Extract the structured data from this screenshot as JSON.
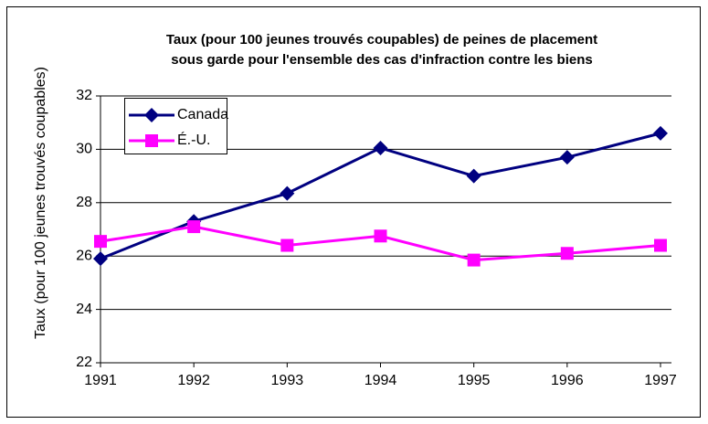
{
  "chart_data": {
    "type": "line",
    "title": [
      "Taux (pour 100 jeunes trouvés coupables) de peines de placement",
      "sous garde pour l'ensemble des cas d'infraction contre les biens"
    ],
    "y_label": "Taux (pour 100 jeunes trouvés coupables)",
    "x": [
      1991,
      1992,
      1993,
      1994,
      1995,
      1996,
      1997
    ],
    "series": [
      {
        "name": "Canada",
        "color": "#000080",
        "marker": "diamond",
        "values": [
          25.9,
          27.3,
          28.35,
          30.05,
          29.0,
          29.7,
          30.6
        ]
      },
      {
        "name": "É.-U.",
        "color": "#ff00ff",
        "marker": "square",
        "values": [
          26.55,
          27.1,
          26.4,
          26.75,
          25.85,
          26.1,
          26.4
        ]
      }
    ],
    "xlim": [
      1991,
      1997
    ],
    "xticks": [
      1991,
      1992,
      1993,
      1994,
      1995,
      1996,
      1997
    ],
    "ylim": [
      22,
      32
    ],
    "yticks": [
      22,
      24,
      26,
      28,
      30,
      32
    ],
    "grid": true,
    "legend": "upper left"
  }
}
